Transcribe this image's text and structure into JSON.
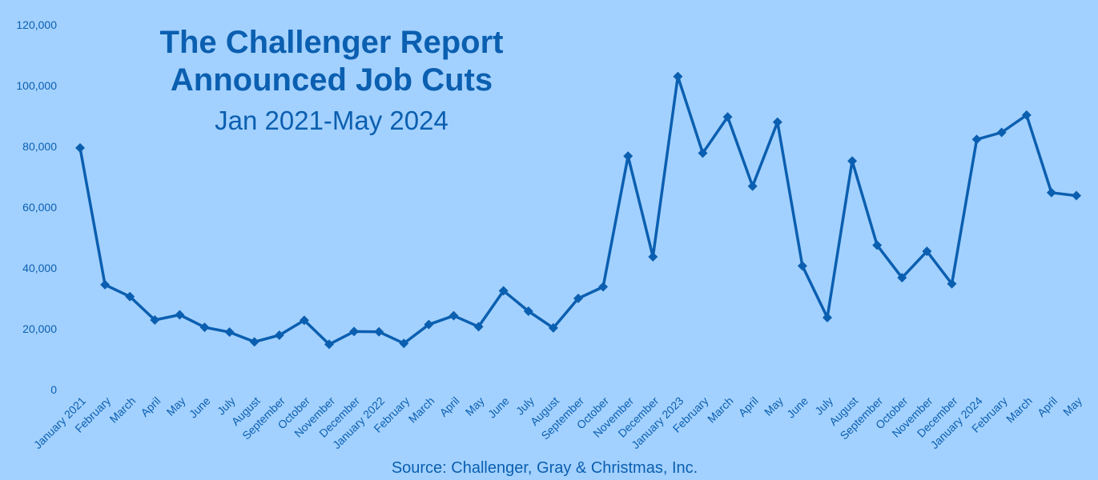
{
  "colors": {
    "background": "#a3d1ff",
    "line": "#0b5fb0",
    "text": "#0b5fb0"
  },
  "chart_data": {
    "type": "line",
    "title": "The Challenger Report",
    "title_line2": "Announced Job Cuts",
    "subtitle": "Jan 2021-May 2024",
    "source": "Source: Challenger, Gray & Christmas, Inc.",
    "xlabel": "",
    "ylabel": "",
    "ylim": [
      0,
      120000
    ],
    "y_ticks": [
      0,
      20000,
      40000,
      60000,
      80000,
      100000,
      120000
    ],
    "y_tick_labels": [
      "0",
      "20,000",
      "40,000",
      "60,000",
      "80,000",
      "100,000",
      "120,000"
    ],
    "grid": false,
    "legend": "none",
    "marker": "diamond",
    "categories": [
      "January 2021",
      "February",
      "March",
      "April",
      "May",
      "June",
      "July",
      "August",
      "September",
      "October",
      "November",
      "December",
      "January 2022",
      "February",
      "March",
      "April",
      "May",
      "June",
      "July",
      "August",
      "September",
      "October",
      "November",
      "December",
      "January 2023",
      "February",
      "March",
      "April",
      "May",
      "June",
      "July",
      "August",
      "September",
      "October",
      "November",
      "December",
      "January 2024",
      "February",
      "March",
      "April",
      "May"
    ],
    "values": [
      79500,
      34500,
      30600,
      22900,
      24600,
      20500,
      18900,
      15700,
      17900,
      22800,
      14900,
      19100,
      19000,
      15200,
      21400,
      24300,
      20700,
      32500,
      25800,
      20300,
      30000,
      33800,
      76800,
      43700,
      103000,
      77800,
      89700,
      66900,
      88000,
      40700,
      23700,
      75200,
      47500,
      36800,
      45500,
      34800,
      82300,
      84600,
      90300,
      64800,
      63800
    ]
  }
}
